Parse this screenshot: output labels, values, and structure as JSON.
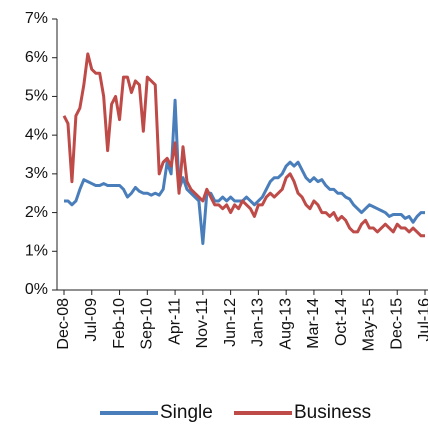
{
  "chart_data": {
    "type": "line",
    "categories": [
      "Dec-08",
      null,
      null,
      null,
      null,
      null,
      null,
      "Jul-09",
      null,
      null,
      null,
      null,
      null,
      null,
      "Feb-10",
      null,
      null,
      null,
      null,
      null,
      null,
      "Sep-10",
      null,
      null,
      null,
      null,
      null,
      null,
      "Apr-11",
      null,
      null,
      null,
      null,
      null,
      null,
      "Nov-11",
      null,
      null,
      null,
      null,
      null,
      null,
      "Jun-12",
      null,
      null,
      null,
      null,
      null,
      null,
      "Jan-13",
      null,
      null,
      null,
      null,
      null,
      null,
      "Aug-13",
      null,
      null,
      null,
      null,
      null,
      null,
      "Mar-14",
      null,
      null,
      null,
      null,
      null,
      null,
      "Oct-14",
      null,
      null,
      null,
      null,
      null,
      null,
      "May-15",
      null,
      null,
      null,
      null,
      null,
      null,
      "Dec-15",
      null,
      null,
      null,
      null,
      null,
      null,
      "Jul-16"
    ],
    "series": [
      {
        "name": "Single",
        "color": "#4a7ebb",
        "values": [
          2.3,
          2.3,
          2.2,
          2.3,
          2.6,
          2.85,
          2.8,
          2.75,
          2.7,
          2.7,
          2.75,
          2.7,
          2.7,
          2.7,
          2.7,
          2.6,
          2.4,
          2.5,
          2.65,
          2.55,
          2.5,
          2.5,
          2.45,
          2.5,
          2.45,
          2.6,
          3.3,
          3.0,
          4.9,
          2.6,
          2.9,
          2.6,
          2.5,
          2.4,
          2.3,
          1.2,
          2.5,
          2.5,
          2.3,
          2.3,
          2.4,
          2.3,
          2.4,
          2.3,
          2.3,
          2.3,
          2.4,
          2.3,
          2.2,
          2.3,
          2.4,
          2.6,
          2.8,
          2.9,
          2.9,
          3.0,
          3.2,
          3.3,
          3.2,
          3.3,
          3.1,
          2.9,
          2.8,
          2.9,
          2.8,
          2.85,
          2.7,
          2.6,
          2.6,
          2.5,
          2.5,
          2.4,
          2.35,
          2.2,
          2.1,
          2.0,
          2.1,
          2.2,
          2.15,
          2.1,
          2.05,
          2.0,
          1.9,
          1.95,
          1.95,
          1.95,
          1.85,
          1.9,
          1.75,
          1.9,
          2.0,
          2.0
        ]
      },
      {
        "name": "Business",
        "color": "#be4b48",
        "values": [
          4.5,
          4.3,
          2.8,
          4.5,
          4.7,
          5.3,
          6.1,
          5.7,
          5.6,
          5.6,
          5.0,
          3.6,
          4.8,
          5.0,
          4.4,
          5.5,
          5.5,
          5.1,
          5.4,
          5.3,
          4.1,
          5.5,
          5.4,
          5.3,
          3.0,
          3.3,
          3.4,
          3.2,
          3.8,
          2.5,
          3.7,
          2.8,
          2.6,
          2.5,
          2.4,
          2.3,
          2.6,
          2.4,
          2.2,
          2.2,
          2.1,
          2.2,
          2.0,
          2.2,
          2.1,
          2.3,
          2.2,
          2.1,
          1.9,
          2.2,
          2.2,
          2.4,
          2.5,
          2.4,
          2.5,
          2.6,
          2.9,
          3.0,
          2.8,
          2.5,
          2.4,
          2.2,
          2.1,
          2.3,
          2.2,
          2.0,
          2.0,
          1.9,
          2.0,
          1.8,
          1.9,
          1.8,
          1.6,
          1.5,
          1.5,
          1.7,
          1.8,
          1.6,
          1.6,
          1.5,
          1.6,
          1.7,
          1.6,
          1.5,
          1.7,
          1.6,
          1.6,
          1.5,
          1.6,
          1.5,
          1.4,
          1.4
        ]
      }
    ],
    "ylim": [
      0,
      7
    ],
    "yticks": [
      {
        "value": 0,
        "label": "0%"
      },
      {
        "value": 1,
        "label": "1%"
      },
      {
        "value": 2,
        "label": "2%"
      },
      {
        "value": 3,
        "label": "3%"
      },
      {
        "value": 4,
        "label": "4%"
      },
      {
        "value": 5,
        "label": "5%"
      },
      {
        "value": 6,
        "label": "6%"
      },
      {
        "value": 7,
        "label": "7%"
      }
    ],
    "grid": false,
    "legend": "bottom"
  }
}
